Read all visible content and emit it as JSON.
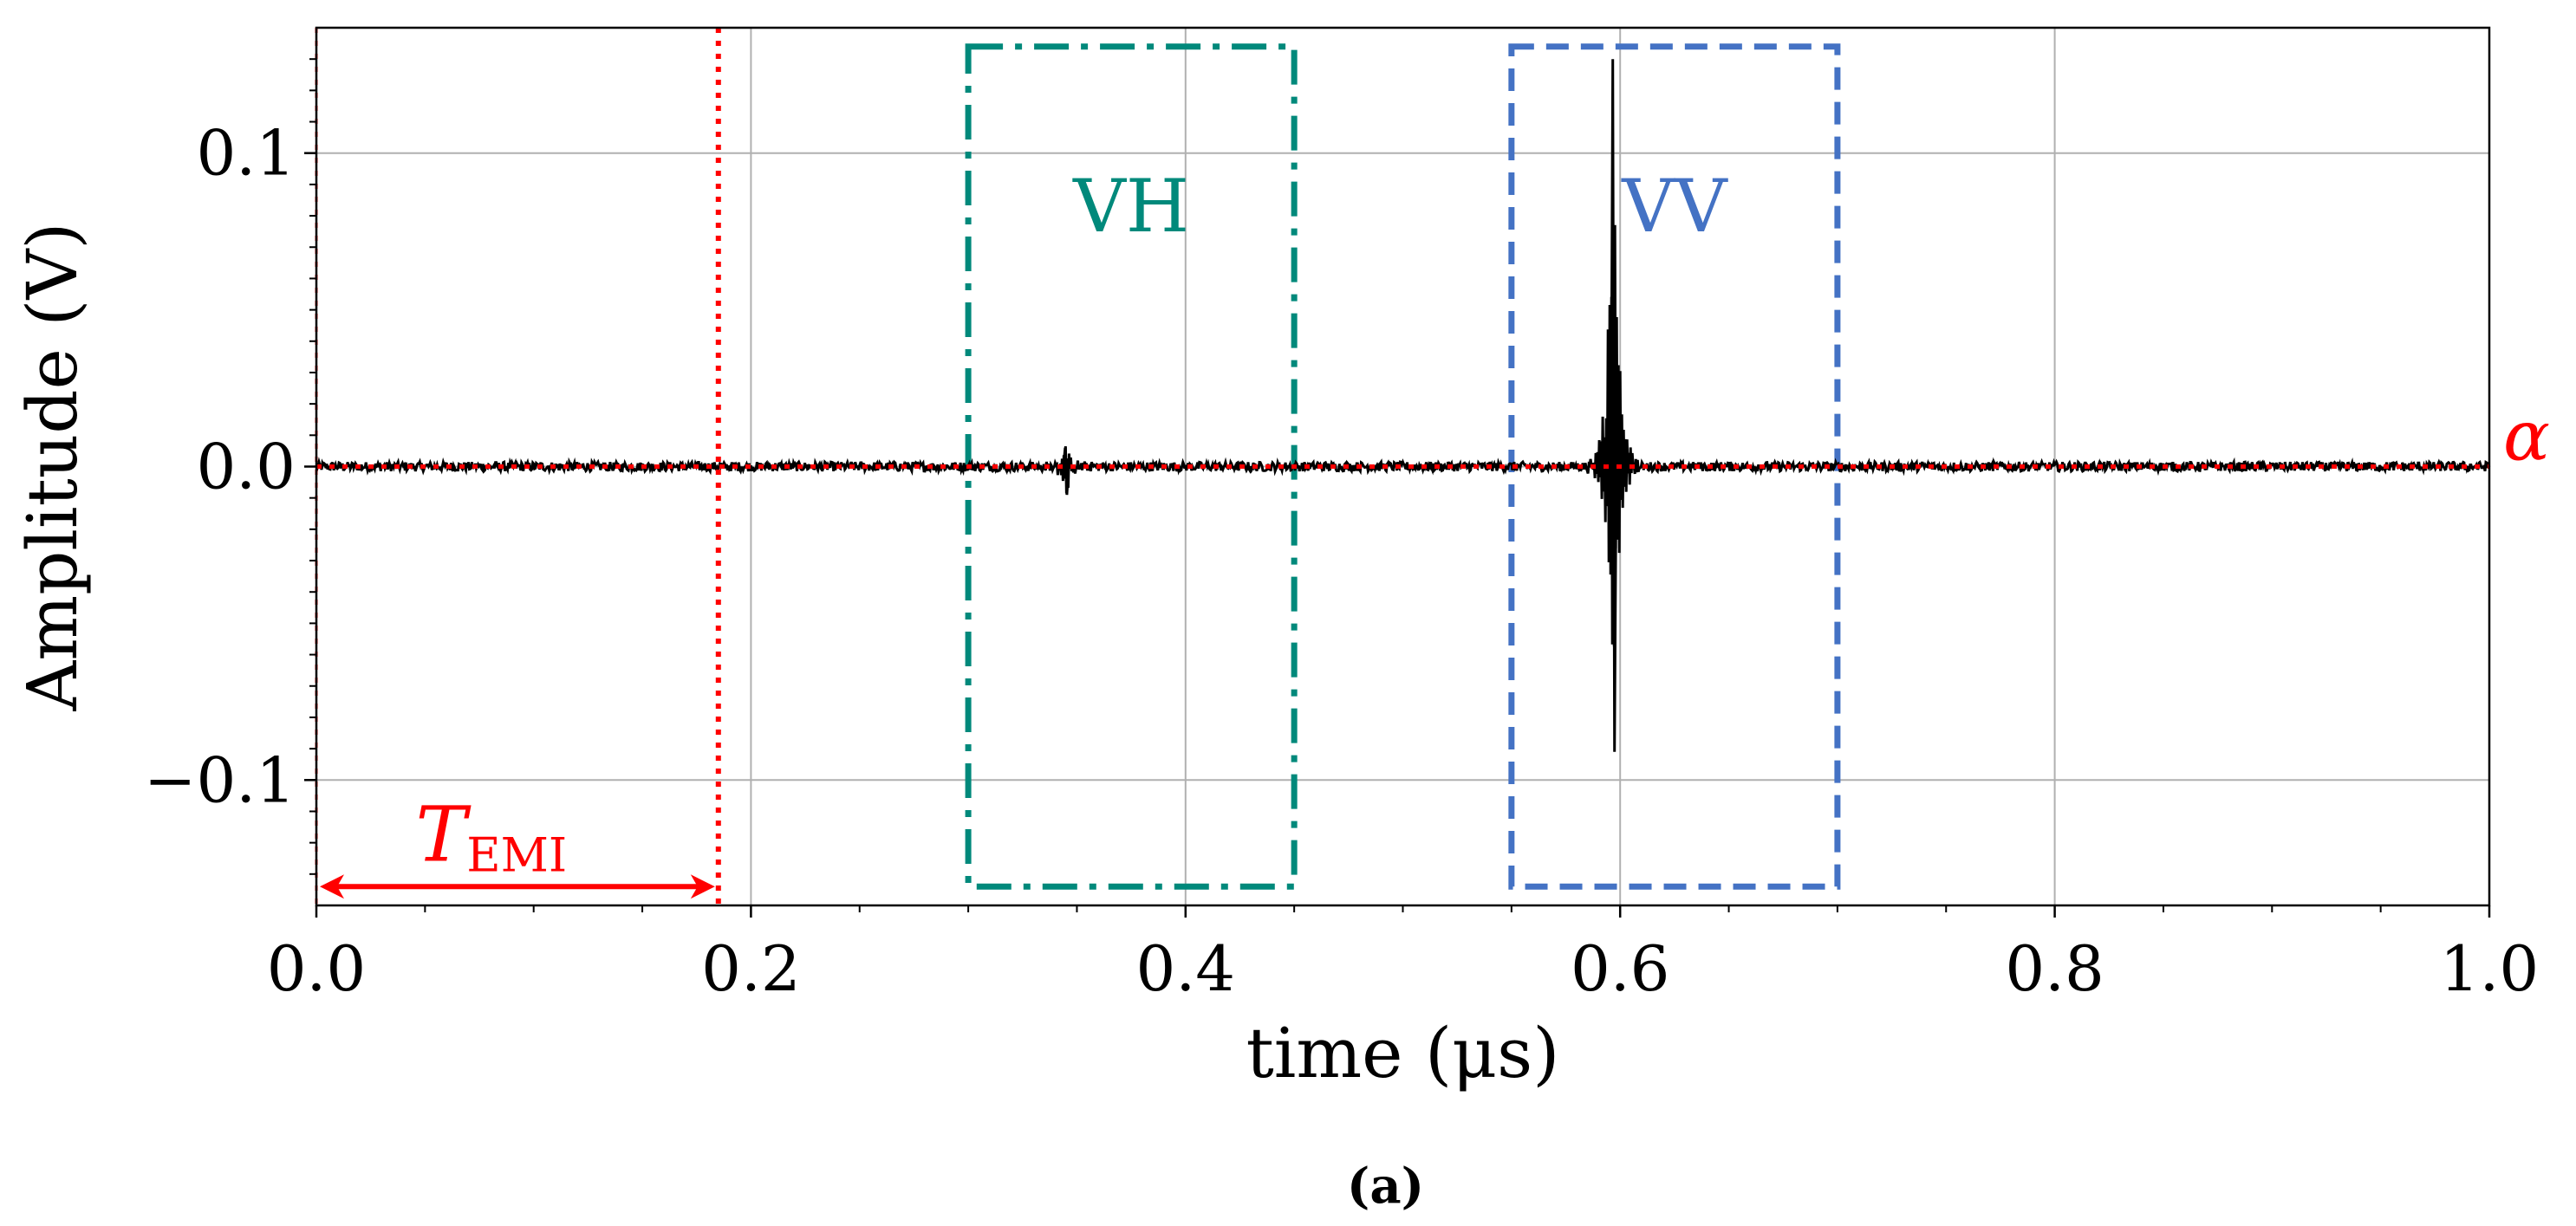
{
  "chart_data": {
    "type": "line",
    "xlabel": "time (μs)",
    "ylabel": "Amplitude (V)",
    "xlim": [
      0.0,
      1.0
    ],
    "ylim": [
      -0.14,
      0.14
    ],
    "xticks": [
      0.0,
      0.2,
      0.4,
      0.6,
      0.8,
      1.0
    ],
    "xtick_labels": [
      "0.0",
      "0.2",
      "0.4",
      "0.6",
      "0.8",
      "1.0"
    ],
    "yticks": [
      -0.1,
      0.0,
      0.1
    ],
    "ytick_labels": [
      "−0.1",
      "0.0",
      "0.1"
    ],
    "grid": true,
    "series": [
      {
        "name": "signal",
        "color": "#000000",
        "noise_level": 0.0015,
        "events": [
          {
            "t": 0.345,
            "peak": 0.006,
            "trough": -0.009
          },
          {
            "t": 0.597,
            "peak": 0.13,
            "trough": -0.091
          }
        ]
      }
    ],
    "threshold": {
      "name": "α",
      "value": 0.0,
      "color": "#ff0000",
      "style": "dotted"
    },
    "vlines": [
      {
        "x": 0.0,
        "color": "#ff0000",
        "style": "dotted"
      },
      {
        "x": 0.185,
        "color": "#ff0000",
        "style": "dotted"
      }
    ],
    "windows": [
      {
        "label": "VH",
        "x0": 0.3,
        "x1": 0.45,
        "y0": -0.134,
        "y1": 0.134,
        "color": "#00897b",
        "style": "dashdot"
      },
      {
        "label": "VV",
        "x0": 0.55,
        "x1": 0.7,
        "y0": -0.134,
        "y1": 0.134,
        "color": "#4472c4",
        "style": "dashed"
      }
    ],
    "span_annotation": {
      "label_main": "T",
      "label_sub": "EMI",
      "x0": 0.0,
      "x1": 0.185,
      "y": -0.134,
      "color": "#ff0000"
    },
    "caption": "(a)"
  }
}
